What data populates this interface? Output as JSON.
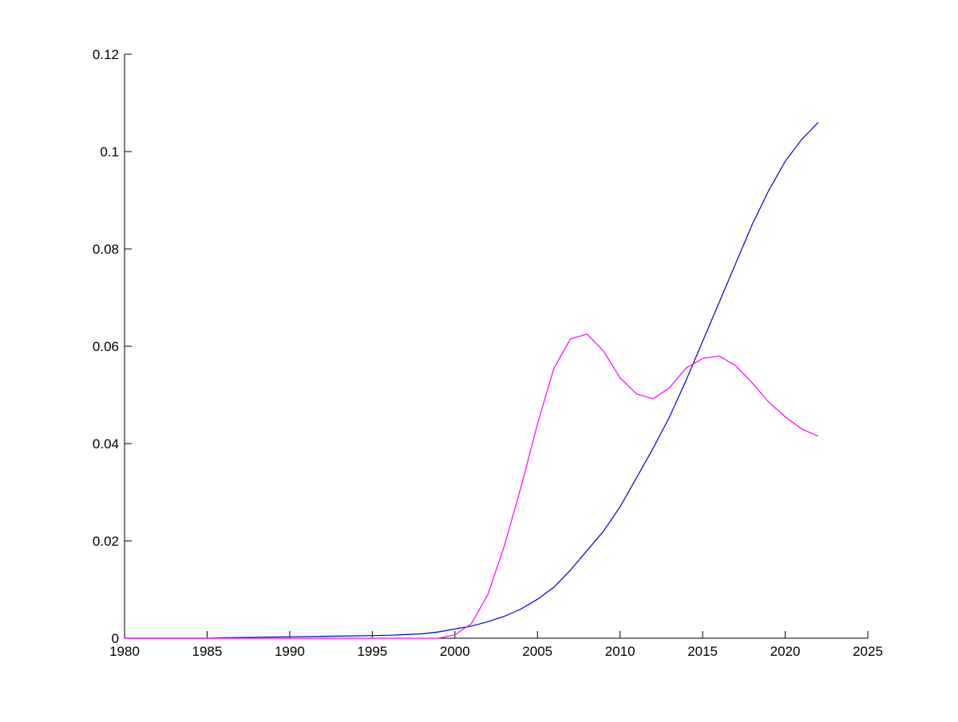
{
  "chart_data": {
    "type": "line",
    "title": "",
    "xlabel": "",
    "ylabel": "",
    "xlim": [
      1980,
      2025
    ],
    "ylim": [
      0,
      0.12
    ],
    "xticks": [
      "1980",
      "1985",
      "1990",
      "1995",
      "2000",
      "2005",
      "2010",
      "2015",
      "2020",
      "2025"
    ],
    "yticks": [
      "0",
      "0.02",
      "0.04",
      "0.06",
      "0.08",
      "0.1",
      "0.12"
    ],
    "grid": false,
    "legend": "none",
    "series": [
      {
        "color": "#0000cc",
        "x": [
          1980,
          1985,
          1986,
          1988,
          1990,
          1992,
          1994,
          1996,
          1998,
          1999,
          2000,
          2001,
          2002,
          2003,
          2004,
          2005,
          2006,
          2007,
          2008,
          2009,
          2010,
          2011,
          2012,
          2013,
          2014,
          2015,
          2016,
          2017,
          2018,
          2019,
          2020,
          2021,
          2022
        ],
        "y": [
          0,
          0,
          0.0001,
          0.0002,
          0.0003,
          0.0004,
          0.0005,
          0.0006,
          0.0009,
          0.0013,
          0.0019,
          0.0025,
          0.0034,
          0.0045,
          0.006,
          0.008,
          0.0105,
          0.014,
          0.018,
          0.022,
          0.027,
          0.033,
          0.039,
          0.0455,
          0.053,
          0.061,
          0.069,
          0.077,
          0.085,
          0.092,
          0.098,
          0.1025,
          0.106
        ]
      },
      {
        "color": "#ff00ff",
        "x": [
          1980,
          1999,
          2000,
          2001,
          2002,
          2003,
          2004,
          2005,
          2006,
          2007,
          2008,
          2009,
          2010,
          2011,
          2012,
          2013,
          2014,
          2015,
          2016,
          2017,
          2018,
          2019,
          2020,
          2021,
          2022
        ],
        "y": [
          0,
          0,
          0.0007,
          0.003,
          0.009,
          0.019,
          0.031,
          0.044,
          0.0555,
          0.0615,
          0.0625,
          0.059,
          0.0535,
          0.0502,
          0.0492,
          0.0515,
          0.0555,
          0.0575,
          0.058,
          0.056,
          0.0525,
          0.0485,
          0.0455,
          0.043,
          0.0415
        ]
      }
    ]
  }
}
